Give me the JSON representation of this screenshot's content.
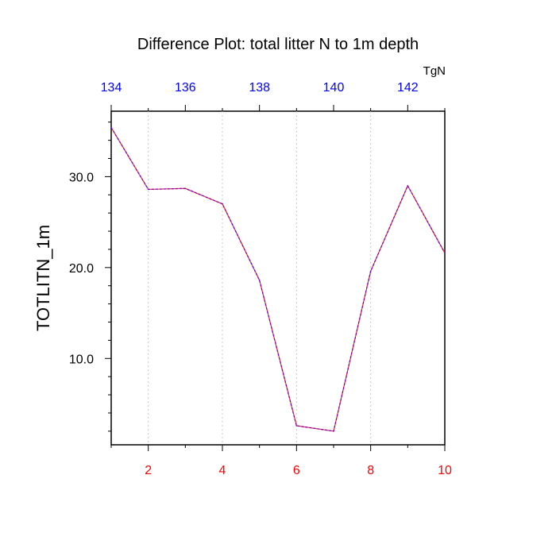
{
  "chart_data": {
    "type": "line",
    "title": "Difference Plot: total litter N to 1m depth",
    "ylabel": "TOTLITN_1m",
    "units_label": "TgN",
    "x": [
      1,
      2,
      3,
      4,
      5,
      6,
      7,
      8,
      9,
      10
    ],
    "series": [
      {
        "name": "TOTLITN_1m",
        "values": [
          35.4,
          28.6,
          28.7,
          27.0,
          18.6,
          2.6,
          2.0,
          19.6,
          29.0,
          21.6
        ],
        "color": "#6a00d0",
        "dash_color": "#ff3030"
      }
    ],
    "xlim": [
      1,
      10
    ],
    "ylim": [
      0.5,
      37.2
    ],
    "bottom_axis": {
      "ticks": [
        2,
        4,
        6,
        8,
        10
      ],
      "labels": [
        "2",
        "4",
        "6",
        "8",
        "10"
      ],
      "color": "#ff0000"
    },
    "top_axis": {
      "ticks": [
        134,
        136,
        138,
        140,
        142
      ],
      "labels": [
        "134",
        "136",
        "138",
        "140",
        "142"
      ],
      "offset": 133,
      "color": "#0000ff"
    },
    "y_axis": {
      "ticks": [
        10,
        20,
        30
      ],
      "labels": [
        "10.0",
        "20.0",
        "30.0"
      ],
      "minor_step": 2
    },
    "gridlines": "vertical-dotted"
  }
}
